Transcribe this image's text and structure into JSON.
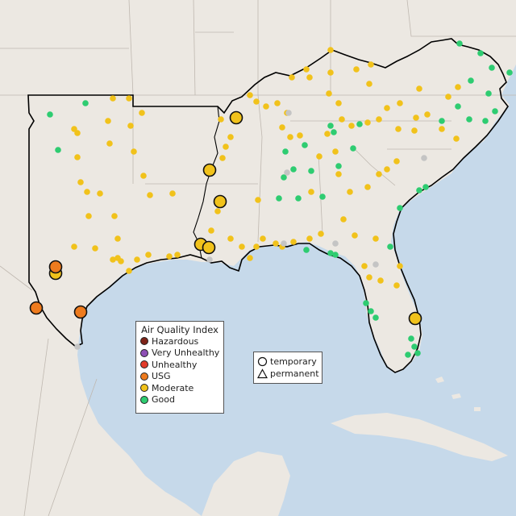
{
  "legend": {
    "title": "Air Quality Index",
    "items": [
      {
        "label": "Hazardous",
        "color": "#7e2418"
      },
      {
        "label": "Very Unhealthy",
        "color": "#8e4fb5"
      },
      {
        "label": "Unhealthy",
        "color": "#e23b2a"
      },
      {
        "label": "USG",
        "color": "#ee7b1e"
      },
      {
        "label": "Moderate",
        "color": "#f1c21b"
      },
      {
        "label": "Good",
        "color": "#2ecc71"
      }
    ]
  },
  "shape_legend": {
    "items": [
      {
        "label": "temporary",
        "icon": "circle-outline-icon"
      },
      {
        "label": "permanent",
        "icon": "triangle-outline-icon"
      }
    ]
  },
  "colors": {
    "ocean": "#c6d9ea",
    "land": "#ece8e2",
    "boundary": "#bfb8b0",
    "region_outline": "#000000",
    "no_data": "#c4c4c4"
  }
}
